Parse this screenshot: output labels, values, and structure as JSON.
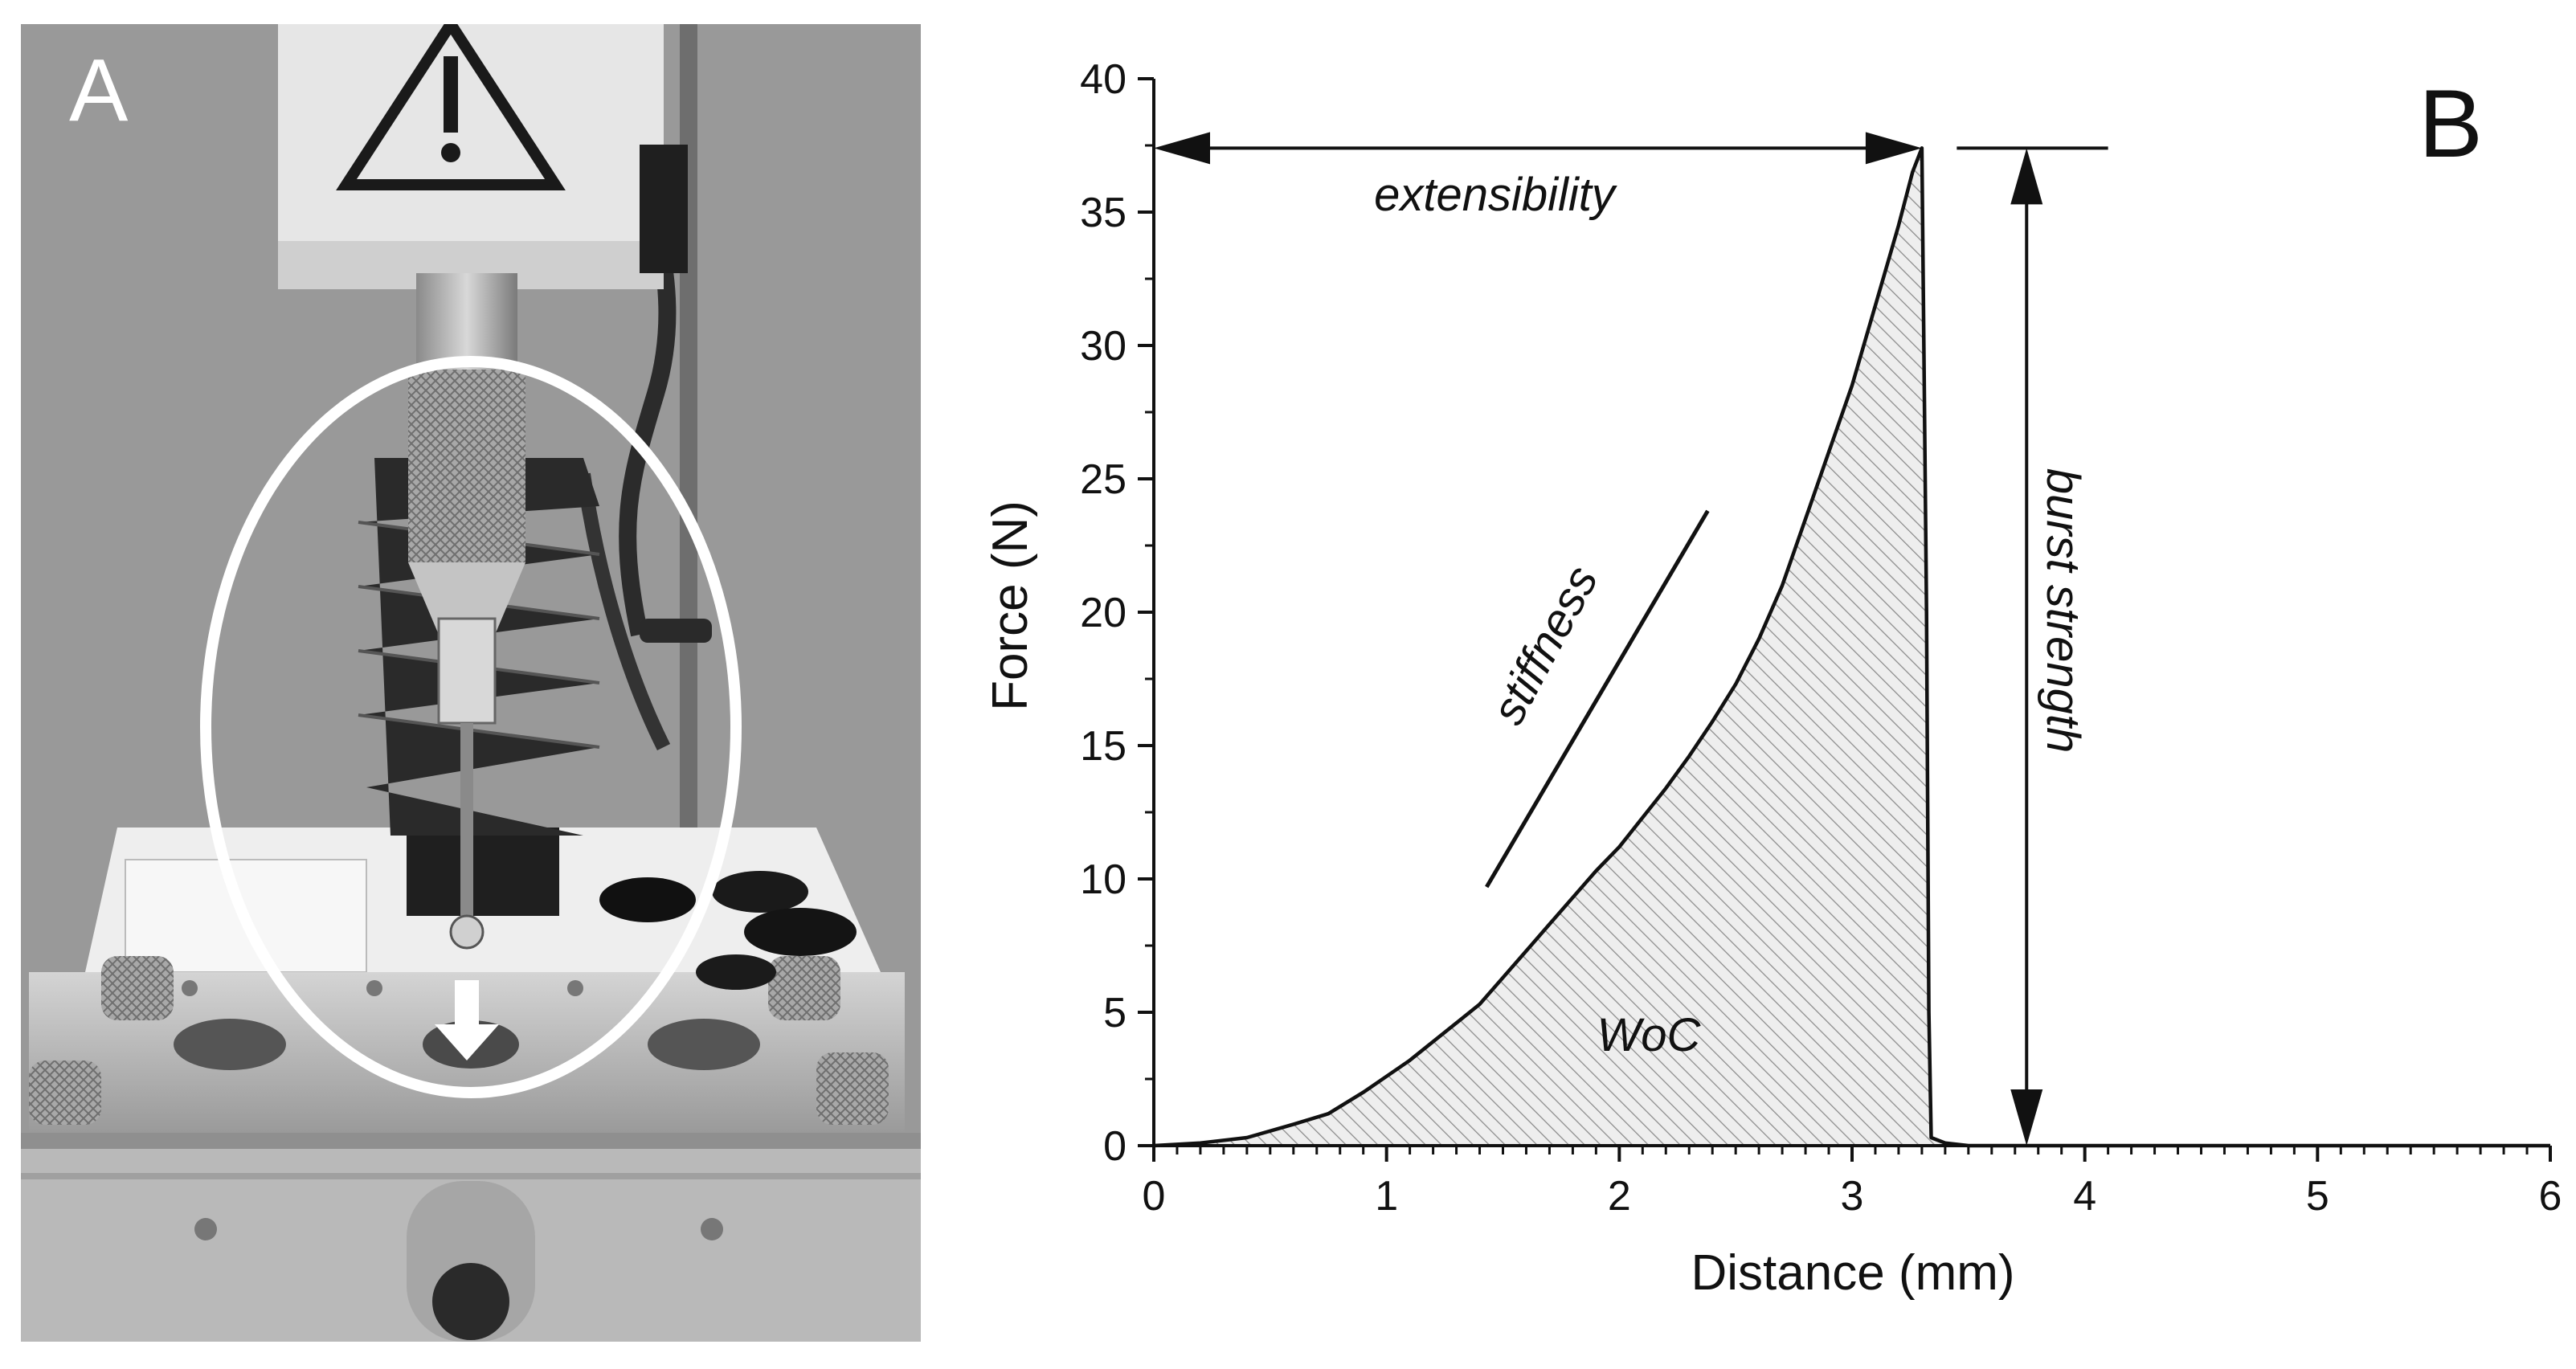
{
  "panel_a": {
    "label": "A",
    "colors": {
      "background": "#9a9a9a",
      "housing": "#e4e4e4",
      "bellows": "#1e1e1e",
      "plate": "#bdbdbd",
      "highlight": "#ffffff"
    }
  },
  "panel_b": {
    "label": "B"
  },
  "chart_data": {
    "type": "line",
    "title": "",
    "xlabel": "Distance (mm)",
    "ylabel": "Force (N)",
    "xlim": [
      0,
      6
    ],
    "ylim": [
      0,
      40
    ],
    "xticks": [
      0,
      1,
      2,
      3,
      4,
      5,
      6
    ],
    "yticks": [
      0,
      5,
      10,
      15,
      20,
      25,
      30,
      35,
      40
    ],
    "grid": false,
    "area_fill": "hatched",
    "series": [
      {
        "x": [
          0,
          0.2,
          0.4,
          0.6,
          0.75,
          0.9,
          1.0,
          1.1,
          1.2,
          1.3,
          1.4,
          1.5,
          1.6,
          1.7,
          1.8,
          1.9,
          2.0,
          2.1,
          2.2,
          2.3,
          2.4,
          2.5,
          2.6,
          2.7,
          2.8,
          2.9,
          3.0,
          3.1,
          3.2,
          3.26,
          3.3,
          3.32,
          3.33,
          3.34,
          3.4,
          3.5,
          6.0
        ],
        "values": [
          0,
          0.1,
          0.3,
          0.8,
          1.2,
          2.0,
          2.6,
          3.2,
          3.9,
          4.6,
          5.3,
          6.3,
          7.3,
          8.3,
          9.3,
          10.3,
          11.2,
          12.3,
          13.4,
          14.6,
          15.9,
          17.3,
          19.0,
          21.0,
          23.5,
          26.0,
          28.5,
          31.5,
          34.5,
          36.5,
          37.4,
          20.0,
          5.0,
          0.3,
          0.1,
          0,
          0
        ]
      }
    ],
    "annotations": {
      "extensibility": "extensibility",
      "burst_strength": "burst strength",
      "stiffness": "stiffness",
      "woc": "WoC"
    }
  }
}
